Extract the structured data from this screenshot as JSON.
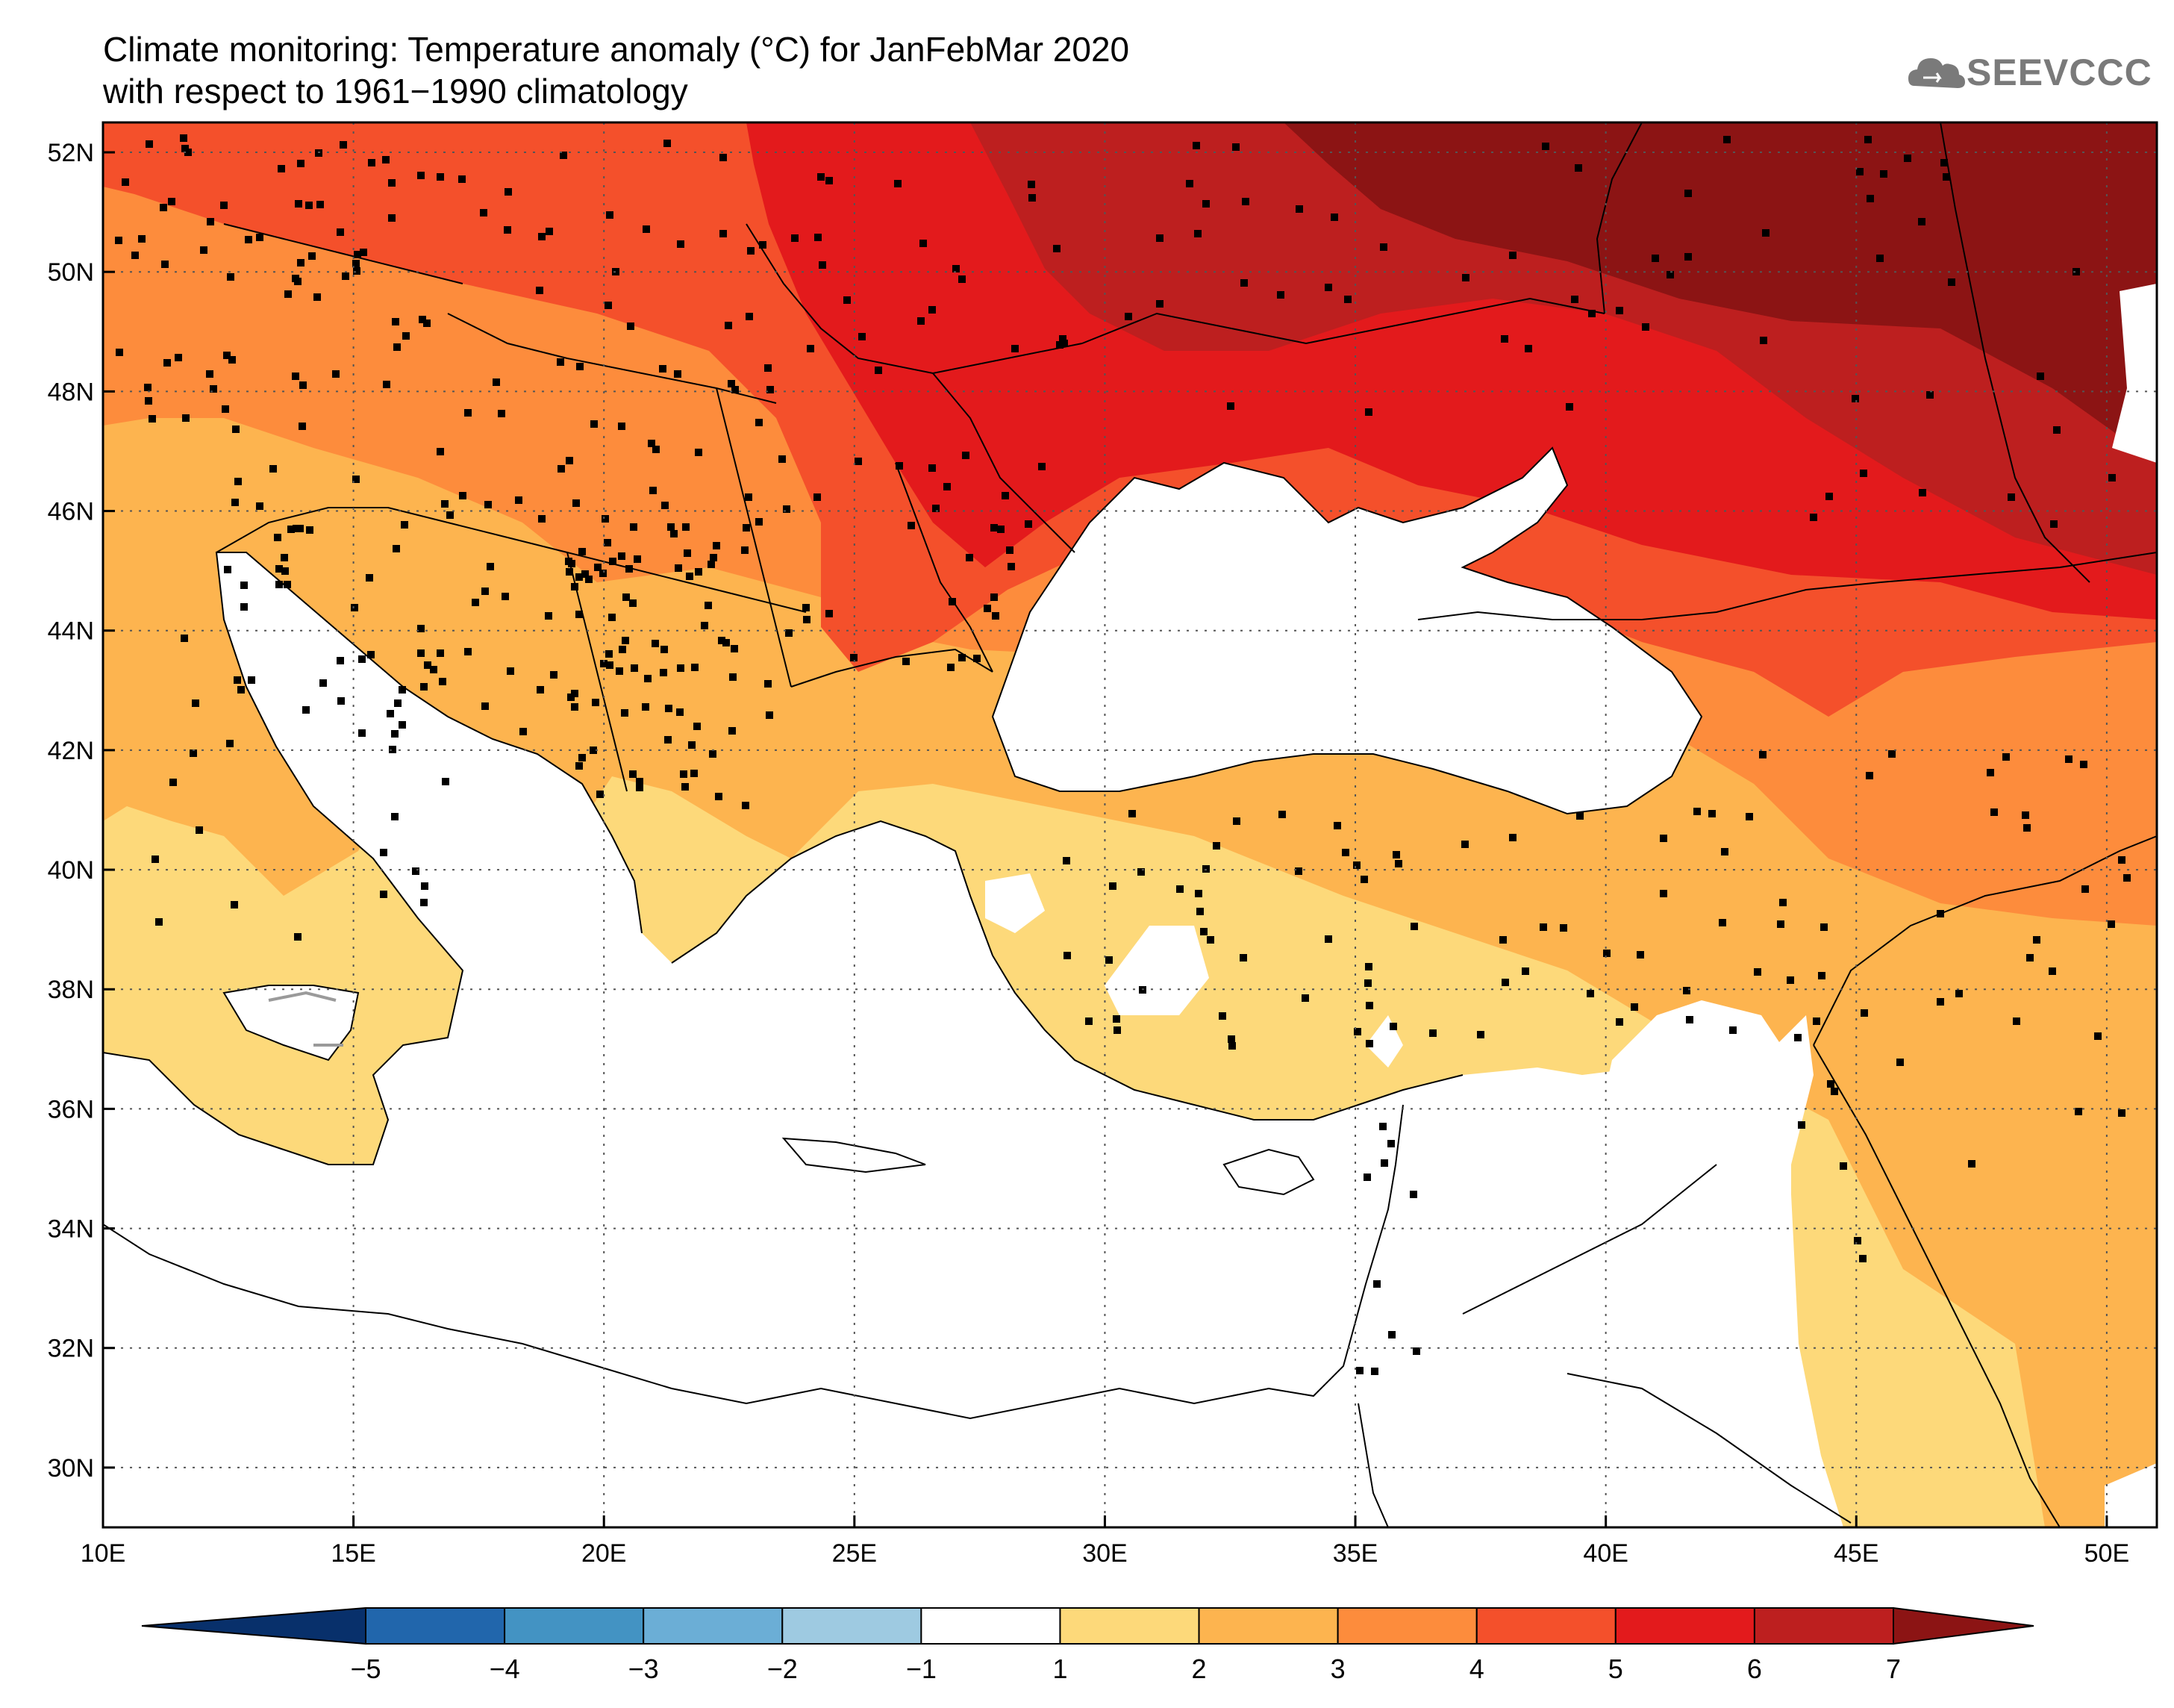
{
  "title": {
    "line1": "Climate monitoring: Temperature anomaly (°C) for JanFebMar 2020",
    "line2": "with respect to 1961−1990 climatology"
  },
  "logo": {
    "text": "SEEVCCC",
    "icon": "cloud-icon"
  },
  "map": {
    "lon_range": [
      10,
      51
    ],
    "lat_range": [
      29,
      52.5
    ],
    "lat_ticks": [
      {
        "value": 52,
        "label": "52N"
      },
      {
        "value": 50,
        "label": "50N"
      },
      {
        "value": 48,
        "label": "48N"
      },
      {
        "value": 46,
        "label": "46N"
      },
      {
        "value": 44,
        "label": "44N"
      },
      {
        "value": 42,
        "label": "42N"
      },
      {
        "value": 40,
        "label": "40N"
      },
      {
        "value": 38,
        "label": "38N"
      },
      {
        "value": 36,
        "label": "36N"
      },
      {
        "value": 34,
        "label": "34N"
      },
      {
        "value": 32,
        "label": "32N"
      },
      {
        "value": 30,
        "label": "30N"
      }
    ],
    "lon_ticks": [
      {
        "value": 10,
        "label": "10E"
      },
      {
        "value": 15,
        "label": "15E"
      },
      {
        "value": 20,
        "label": "20E"
      },
      {
        "value": 25,
        "label": "25E"
      },
      {
        "value": 30,
        "label": "30E"
      },
      {
        "value": 35,
        "label": "35E"
      },
      {
        "value": 40,
        "label": "40E"
      },
      {
        "value": 45,
        "label": "45E"
      },
      {
        "value": 50,
        "label": "50E"
      }
    ],
    "grid": "dotted"
  },
  "colorbar": {
    "levels": [
      "−5",
      "−4",
      "−3",
      "−2",
      "−1",
      "1",
      "2",
      "3",
      "4",
      "5",
      "6",
      "7"
    ],
    "colors": [
      "#08306b",
      "#2166ac",
      "#4393c3",
      "#6baed6",
      "#9ecae1",
      "#ffffff",
      "#fdd97a",
      "#fdb44f",
      "#fd8c3c",
      "#f4502b",
      "#e31a1c",
      "#bd1f1f",
      "#8c1414"
    ]
  },
  "colors": {
    "c1_2": "#fdd97a",
    "c2_3": "#fdb44f",
    "c3_4": "#fd8c3c",
    "c4_5": "#f4502b",
    "c5_6": "#e31a1c",
    "c6_7": "#bd1f1f",
    "c7p": "#8c1414"
  }
}
